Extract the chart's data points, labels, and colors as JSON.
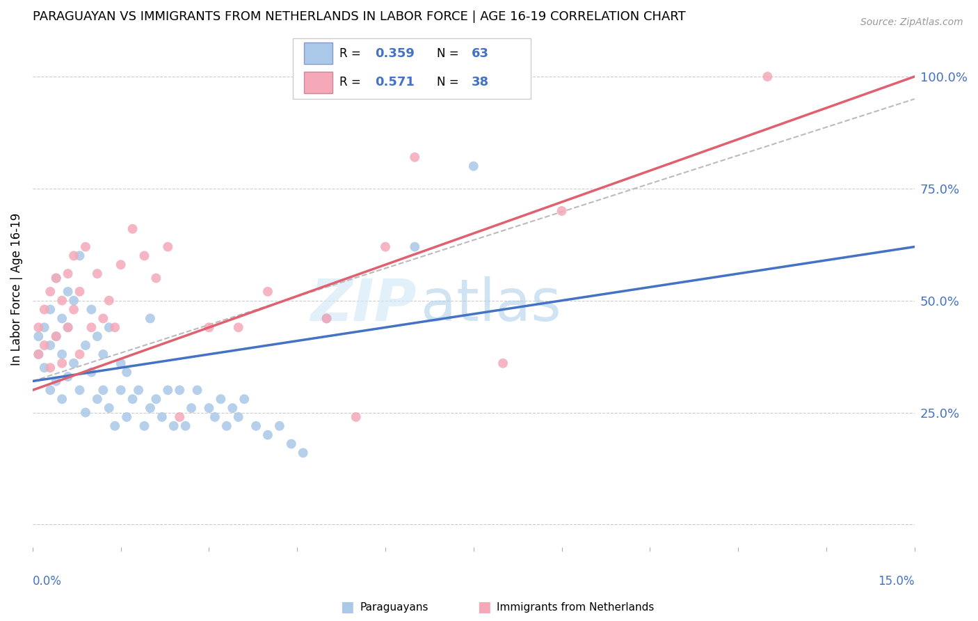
{
  "title": "PARAGUAYAN VS IMMIGRANTS FROM NETHERLANDS IN LABOR FORCE | AGE 16-19 CORRELATION CHART",
  "source": "Source: ZipAtlas.com",
  "ylabel": "In Labor Force | Age 16-19",
  "xlim": [
    0.0,
    0.15
  ],
  "ylim": [
    -0.05,
    1.1
  ],
  "yticks": [
    0.0,
    0.25,
    0.5,
    0.75,
    1.0
  ],
  "ytick_labels": [
    "",
    "25.0%",
    "50.0%",
    "75.0%",
    "100.0%"
  ],
  "xticks": [
    0.0,
    0.015,
    0.03,
    0.045,
    0.06,
    0.075,
    0.09,
    0.105,
    0.12,
    0.135,
    0.15
  ],
  "blue_color": "#aac8e8",
  "pink_color": "#f4a8b8",
  "blue_line_color": "#4472c4",
  "pink_line_color": "#e06070",
  "legend_r_blue": "0.359",
  "legend_n_blue": "63",
  "legend_r_pink": "0.571",
  "legend_n_pink": "38",
  "watermark_zip": "ZIP",
  "watermark_atlas": "atlas",
  "blue_trend_x": [
    0.0,
    0.15
  ],
  "blue_trend_y": [
    0.32,
    0.62
  ],
  "pink_trend_x": [
    0.0,
    0.15
  ],
  "pink_trend_y": [
    0.3,
    1.0
  ],
  "dash_trend_x": [
    0.0,
    0.15
  ],
  "dash_trend_y": [
    0.32,
    0.95
  ],
  "para_x": [
    0.001,
    0.001,
    0.002,
    0.002,
    0.003,
    0.003,
    0.003,
    0.004,
    0.004,
    0.004,
    0.005,
    0.005,
    0.005,
    0.006,
    0.006,
    0.006,
    0.007,
    0.007,
    0.008,
    0.008,
    0.009,
    0.009,
    0.01,
    0.01,
    0.011,
    0.011,
    0.012,
    0.012,
    0.013,
    0.013,
    0.014,
    0.015,
    0.015,
    0.016,
    0.016,
    0.017,
    0.018,
    0.019,
    0.02,
    0.02,
    0.021,
    0.022,
    0.023,
    0.024,
    0.025,
    0.026,
    0.027,
    0.028,
    0.03,
    0.031,
    0.032,
    0.033,
    0.034,
    0.035,
    0.036,
    0.038,
    0.04,
    0.042,
    0.044,
    0.046,
    0.05,
    0.065,
    0.075
  ],
  "para_y": [
    0.38,
    0.42,
    0.35,
    0.44,
    0.3,
    0.4,
    0.48,
    0.32,
    0.42,
    0.55,
    0.28,
    0.38,
    0.46,
    0.33,
    0.44,
    0.52,
    0.36,
    0.5,
    0.3,
    0.6,
    0.25,
    0.4,
    0.34,
    0.48,
    0.28,
    0.42,
    0.3,
    0.38,
    0.26,
    0.44,
    0.22,
    0.3,
    0.36,
    0.24,
    0.34,
    0.28,
    0.3,
    0.22,
    0.46,
    0.26,
    0.28,
    0.24,
    0.3,
    0.22,
    0.3,
    0.22,
    0.26,
    0.3,
    0.26,
    0.24,
    0.28,
    0.22,
    0.26,
    0.24,
    0.28,
    0.22,
    0.2,
    0.22,
    0.18,
    0.16,
    0.46,
    0.62,
    0.8
  ],
  "neth_x": [
    0.001,
    0.001,
    0.002,
    0.002,
    0.003,
    0.003,
    0.004,
    0.004,
    0.005,
    0.005,
    0.006,
    0.006,
    0.007,
    0.007,
    0.008,
    0.008,
    0.009,
    0.01,
    0.011,
    0.012,
    0.013,
    0.014,
    0.015,
    0.017,
    0.019,
    0.021,
    0.023,
    0.025,
    0.03,
    0.035,
    0.04,
    0.05,
    0.055,
    0.06,
    0.065,
    0.08,
    0.09,
    0.125
  ],
  "neth_y": [
    0.38,
    0.44,
    0.4,
    0.48,
    0.35,
    0.52,
    0.42,
    0.55,
    0.36,
    0.5,
    0.44,
    0.56,
    0.48,
    0.6,
    0.38,
    0.52,
    0.62,
    0.44,
    0.56,
    0.46,
    0.5,
    0.44,
    0.58,
    0.66,
    0.6,
    0.55,
    0.62,
    0.24,
    0.44,
    0.44,
    0.52,
    0.46,
    0.24,
    0.62,
    0.82,
    0.36,
    0.7,
    1.0
  ]
}
